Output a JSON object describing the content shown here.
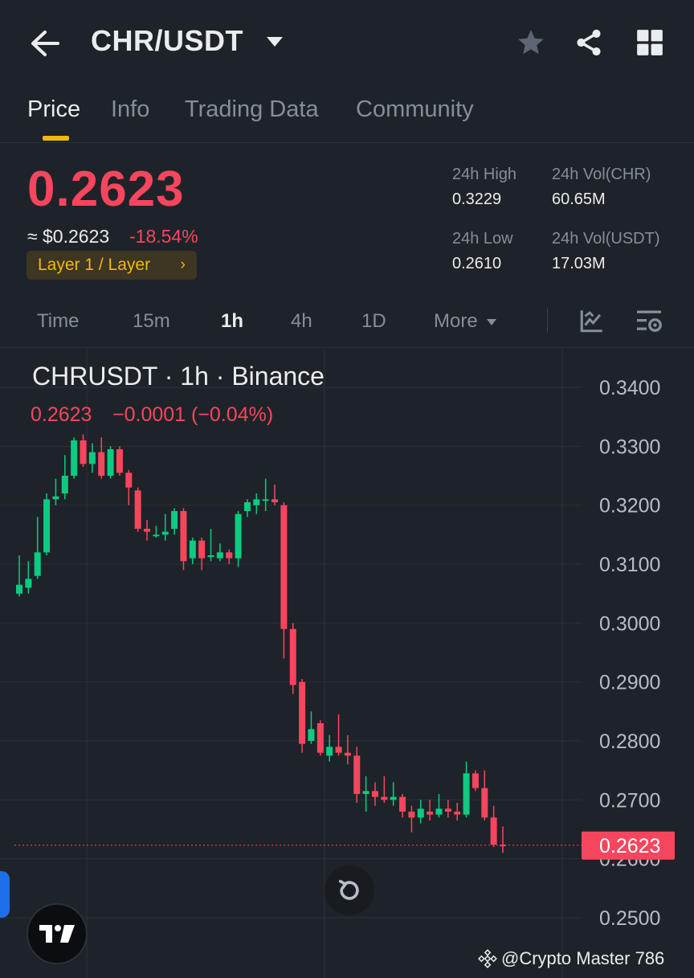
{
  "header": {
    "pair": "CHR/USDT",
    "icons": [
      "back-arrow-icon",
      "caret-down-icon",
      "star-icon",
      "share-icon",
      "grid-icon"
    ]
  },
  "tabs": [
    {
      "label": "Price",
      "active": true
    },
    {
      "label": "Info",
      "active": false
    },
    {
      "label": "Trading Data",
      "active": false
    },
    {
      "label": "Community",
      "active": false
    }
  ],
  "price": {
    "last": "0.2623",
    "usd": "≈ $0.2623",
    "change": "-18.54%",
    "tag": "Layer 1 / Layer",
    "tag_chevron": "›"
  },
  "stats": {
    "high_label": "24h High",
    "high_value": "0.3229",
    "low_label": "24h Low",
    "low_value": "0.2610",
    "vol_base_label": "24h Vol(CHR)",
    "vol_base_value": "60.65M",
    "vol_quote_label": "24h Vol(USDT)",
    "vol_quote_value": "17.03M"
  },
  "timeframes": [
    {
      "label": "Time",
      "active": false
    },
    {
      "label": "15m",
      "active": false
    },
    {
      "label": "1h",
      "active": true
    },
    {
      "label": "4h",
      "active": false
    },
    {
      "label": "1D",
      "active": false
    },
    {
      "label": "More",
      "active": false
    }
  ],
  "colors": {
    "up": "#0ecb81",
    "down": "#f6465d",
    "accent": "#f0b90b",
    "background": "#1e2329"
  },
  "chart": {
    "title": "CHRUSDT · 1h · Binance",
    "ohlc_price": "0.2623",
    "ohlc_change": "−0.0001 (−0.04%)",
    "current_price_label": "0.2623"
  },
  "watermark": "@Crypto Master 786",
  "chart_data": {
    "type": "candlestick",
    "symbol": "CHRUSDT",
    "interval": "1h",
    "ylim": [
      0.25,
      0.34
    ],
    "y_ticks": [
      "0.3400",
      "0.3300",
      "0.3200",
      "0.3100",
      "0.3000",
      "0.2900",
      "0.2800",
      "0.2700",
      "0.2600",
      "0.2500"
    ],
    "last_price": 0.2623,
    "candles": [
      [
        0.305,
        0.3065,
        0.3115,
        0.3045
      ],
      [
        0.306,
        0.3075,
        0.3105,
        0.305
      ],
      [
        0.308,
        0.312,
        0.318,
        0.3075
      ],
      [
        0.312,
        0.321,
        0.322,
        0.3115
      ],
      [
        0.321,
        0.3215,
        0.3245,
        0.32
      ],
      [
        0.322,
        0.325,
        0.3285,
        0.321
      ],
      [
        0.325,
        0.331,
        0.3315,
        0.3245
      ],
      [
        0.331,
        0.327,
        0.332,
        0.3265
      ],
      [
        0.327,
        0.329,
        0.3305,
        0.3255
      ],
      [
        0.329,
        0.325,
        0.3315,
        0.3245
      ],
      [
        0.325,
        0.3295,
        0.33,
        0.3245
      ],
      [
        0.3295,
        0.3255,
        0.33,
        0.325
      ],
      [
        0.3255,
        0.323,
        0.326,
        0.32
      ],
      [
        0.3225,
        0.316,
        0.323,
        0.3155
      ],
      [
        0.316,
        0.3155,
        0.3175,
        0.314
      ],
      [
        0.315,
        0.315,
        0.3165,
        0.3145
      ],
      [
        0.315,
        0.3155,
        0.3185,
        0.314
      ],
      [
        0.316,
        0.319,
        0.3195,
        0.315
      ],
      [
        0.319,
        0.3105,
        0.3195,
        0.309
      ],
      [
        0.311,
        0.314,
        0.3145,
        0.31
      ],
      [
        0.314,
        0.311,
        0.3145,
        0.309
      ],
      [
        0.3115,
        0.3115,
        0.316,
        0.3105
      ],
      [
        0.311,
        0.312,
        0.3135,
        0.3105
      ],
      [
        0.312,
        0.311,
        0.3125,
        0.31
      ],
      [
        0.311,
        0.3185,
        0.319,
        0.3095
      ],
      [
        0.319,
        0.3205,
        0.321,
        0.318
      ],
      [
        0.32,
        0.321,
        0.322,
        0.3185
      ],
      [
        0.321,
        0.321,
        0.3245,
        0.319
      ],
      [
        0.321,
        0.3205,
        0.3235,
        0.32
      ],
      [
        0.32,
        0.299,
        0.3205,
        0.294
      ],
      [
        0.299,
        0.2895,
        0.3,
        0.288
      ],
      [
        0.29,
        0.2795,
        0.2905,
        0.278
      ],
      [
        0.28,
        0.282,
        0.285,
        0.2795
      ],
      [
        0.283,
        0.278,
        0.2835,
        0.2775
      ],
      [
        0.2775,
        0.279,
        0.281,
        0.2765
      ],
      [
        0.279,
        0.278,
        0.2845,
        0.2775
      ],
      [
        0.278,
        0.2775,
        0.281,
        0.276
      ],
      [
        0.2775,
        0.271,
        0.279,
        0.2695
      ],
      [
        0.271,
        0.2715,
        0.274,
        0.268
      ],
      [
        0.2715,
        0.2705,
        0.273,
        0.269
      ],
      [
        0.2705,
        0.27,
        0.274,
        0.2695
      ],
      [
        0.27,
        0.2705,
        0.273,
        0.269
      ],
      [
        0.2705,
        0.268,
        0.271,
        0.267
      ],
      [
        0.268,
        0.267,
        0.269,
        0.2645
      ],
      [
        0.267,
        0.2685,
        0.27,
        0.266
      ],
      [
        0.268,
        0.2675,
        0.27,
        0.2665
      ],
      [
        0.2675,
        0.2685,
        0.271,
        0.267
      ],
      [
        0.2685,
        0.268,
        0.27,
        0.267
      ],
      [
        0.268,
        0.2675,
        0.2695,
        0.2665
      ],
      [
        0.2675,
        0.2745,
        0.2765,
        0.267
      ],
      [
        0.2745,
        0.272,
        0.275,
        0.2715
      ],
      [
        0.272,
        0.267,
        0.275,
        0.2665
      ],
      [
        0.267,
        0.2624,
        0.269,
        0.262
      ],
      [
        0.2624,
        0.2623,
        0.2655,
        0.261
      ]
    ],
    "candle_format": [
      "open",
      "close",
      "high",
      "low"
    ]
  }
}
